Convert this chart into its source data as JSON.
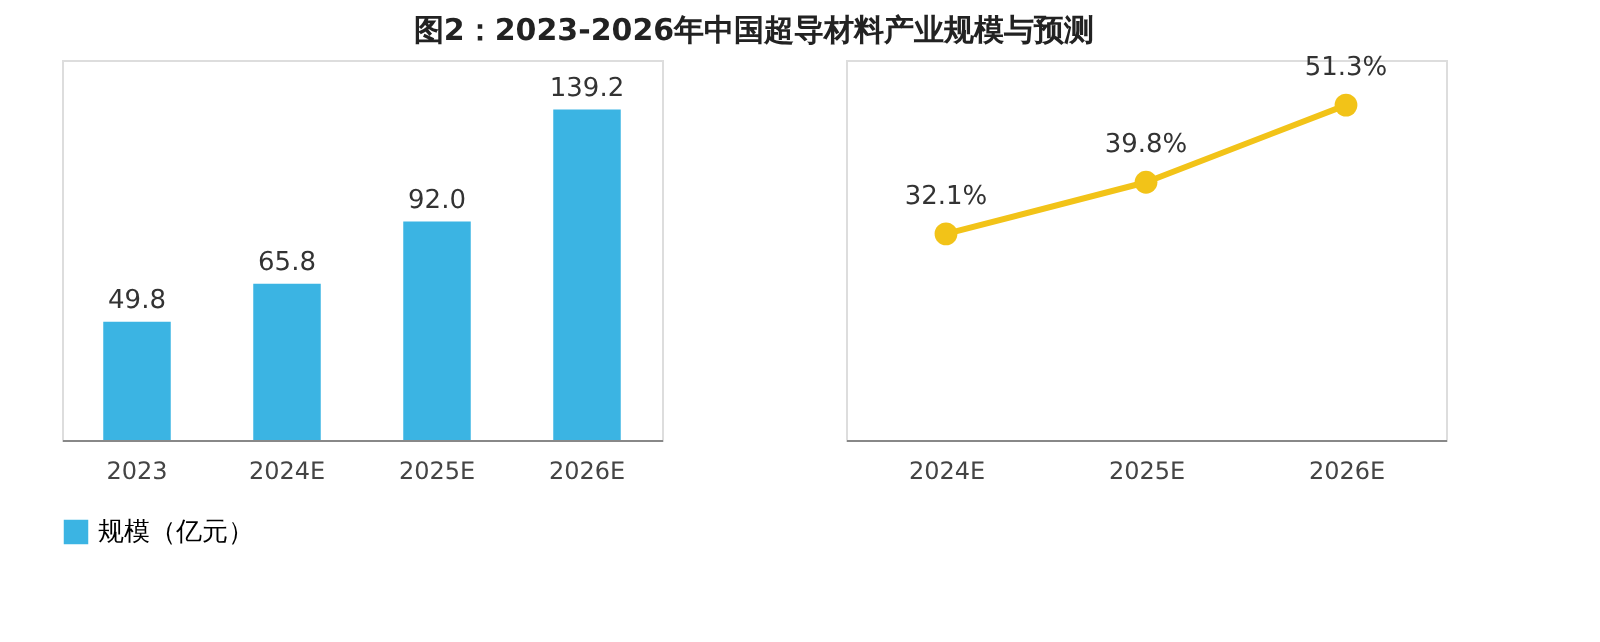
{
  "chart_data": [
    {
      "type": "bar",
      "title": "图2：2023-2026年中国超导材料产业规模与预测",
      "categories": [
        "2023",
        "2024E",
        "2025E",
        "2026E"
      ],
      "series": [
        {
          "name": "规模（亿元）",
          "color": "#3bb4e3",
          "values": [
            49.8,
            65.8,
            92.0,
            139.2
          ],
          "value_labels": [
            "49.8",
            "65.8",
            "92.0",
            "139.2"
          ]
        }
      ],
      "legend": "bottom",
      "tick_labels": "x",
      "grid": false
    },
    {
      "type": "line",
      "categories": [
        "2024E",
        "2025E",
        "2026E"
      ],
      "series": [
        {
          "color": "#f2c318",
          "values": [
            32.1,
            39.8,
            51.3
          ],
          "value_labels": [
            "32.1%",
            "39.8%",
            "51.3%"
          ]
        }
      ],
      "marker": "circle",
      "line_style": "solid",
      "legend": false,
      "tick_labels": "x",
      "grid": false
    }
  ]
}
